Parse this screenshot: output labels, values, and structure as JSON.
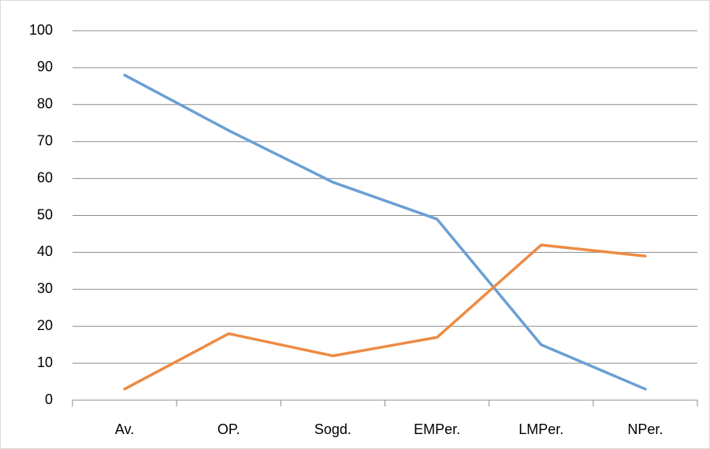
{
  "chart_data": {
    "type": "line",
    "categories": [
      "Av.",
      "OP.",
      "Sogd.",
      "EMPer.",
      "LMPer.",
      "NPer."
    ],
    "series": [
      {
        "color": "#6a9fd4",
        "values": [
          88,
          73,
          59,
          49,
          15,
          3
        ]
      },
      {
        "color": "#ed8b45",
        "values": [
          3,
          18,
          12,
          17,
          42,
          39
        ]
      }
    ],
    "ylim": [
      0,
      100
    ],
    "yticks": [
      0,
      10,
      20,
      30,
      40,
      50,
      60,
      70,
      80,
      90,
      100
    ],
    "grid": true
  }
}
